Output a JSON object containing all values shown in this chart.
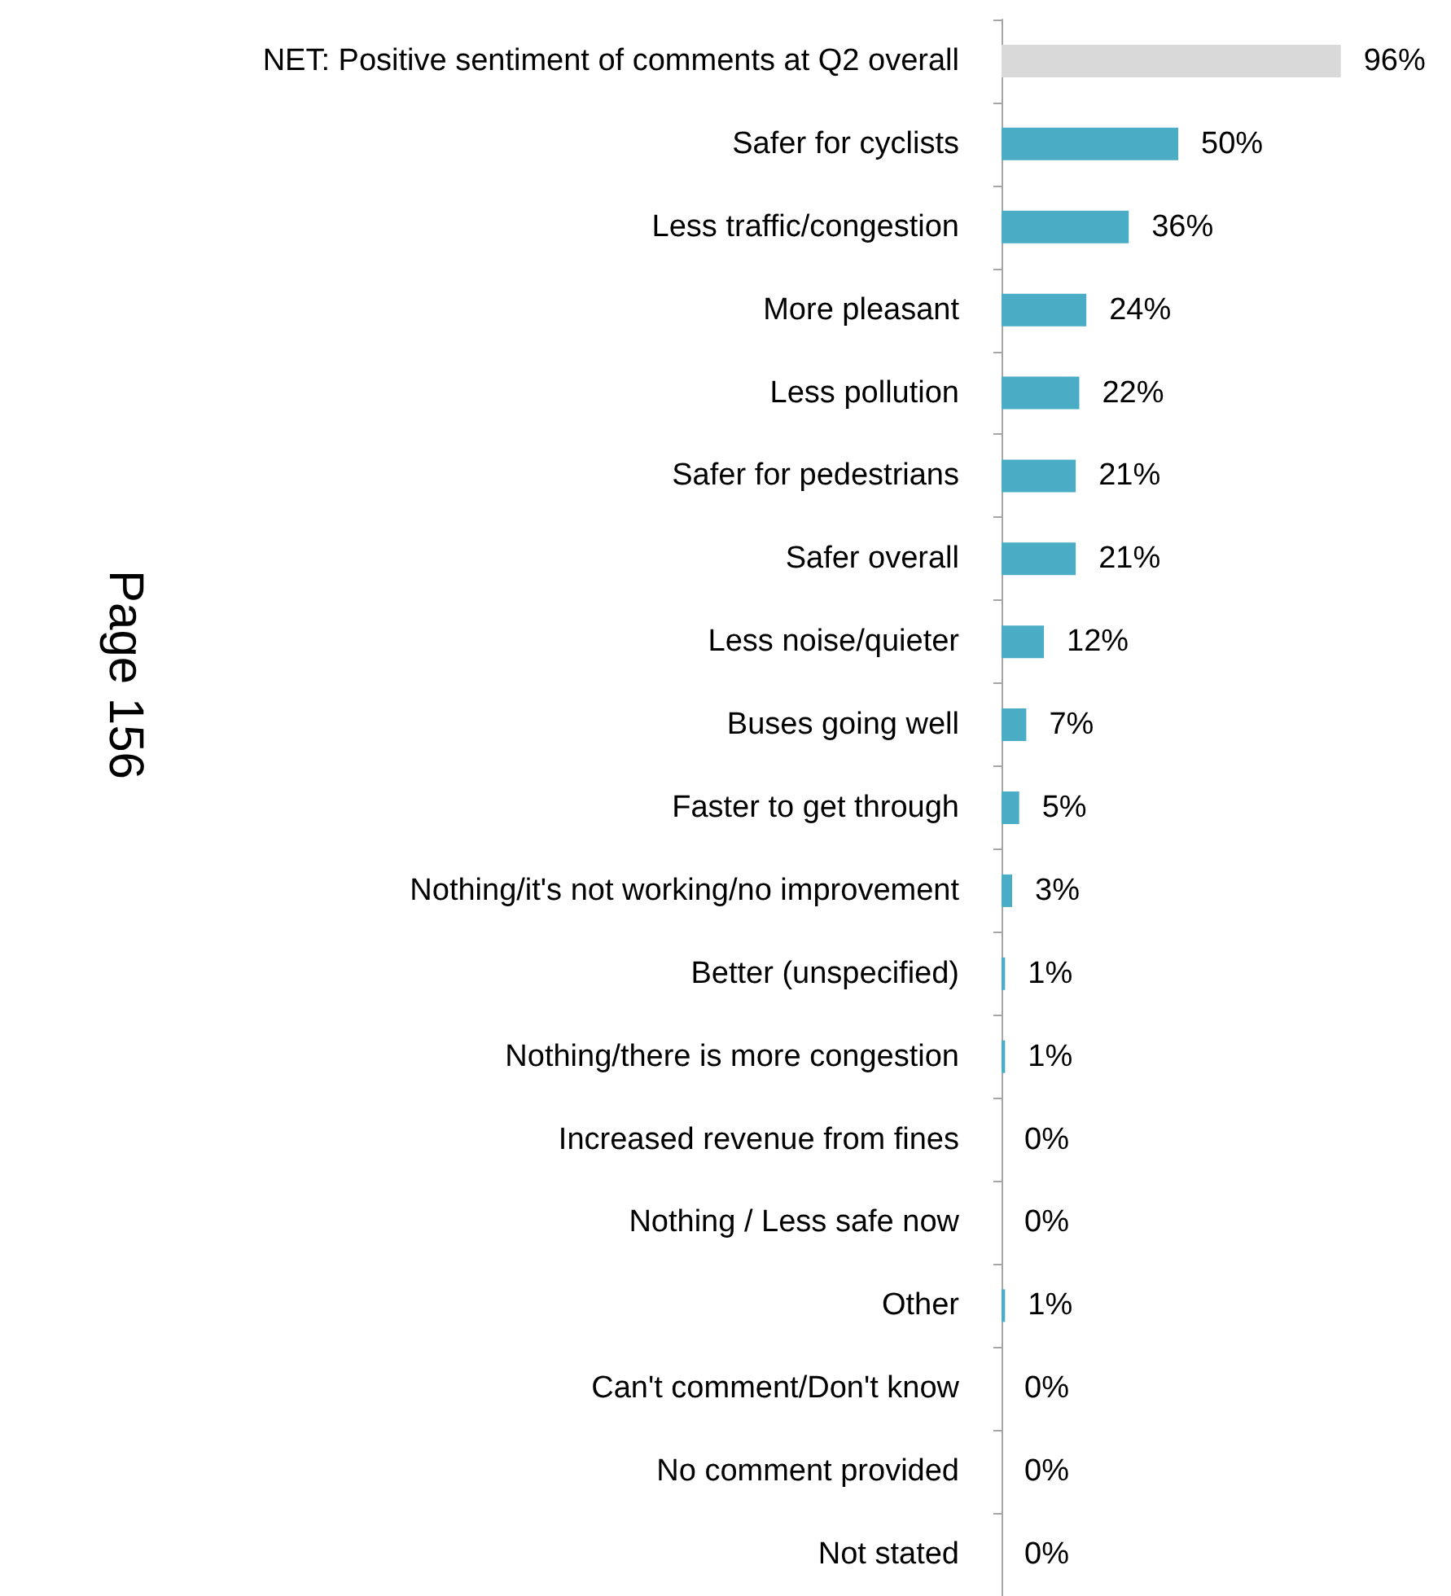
{
  "chart_data": {
    "type": "bar",
    "orientation": "horizontal",
    "categories": [
      "NET: Positive sentiment of comments at Q2 overall",
      "Safer for cyclists",
      "Less traffic/congestion",
      "More pleasant",
      "Less pollution",
      "Safer for pedestrians",
      "Safer overall",
      "Less noise/quieter",
      "Buses going well",
      "Faster to get through",
      "Nothing/it's not working/no improvement",
      "Better (unspecified)",
      "Nothing/there is more congestion",
      "Increased revenue from fines",
      "Nothing / Less safe now",
      "Other",
      "Can't comment/Don't know",
      "No comment provided",
      "Not stated"
    ],
    "values": [
      96,
      50,
      36,
      24,
      22,
      21,
      21,
      12,
      7,
      5,
      3,
      1,
      1,
      0,
      0,
      1,
      0,
      0,
      0
    ],
    "colors": [
      "#d9d9d9",
      "#4bacc6",
      "#4bacc6",
      "#4bacc6",
      "#4bacc6",
      "#4bacc6",
      "#4bacc6",
      "#4bacc6",
      "#4bacc6",
      "#4bacc6",
      "#4bacc6",
      "#4bacc6",
      "#4bacc6",
      "#4bacc6",
      "#4bacc6",
      "#4bacc6",
      "#4bacc6",
      "#4bacc6",
      "#4bacc6"
    ],
    "value_labels": [
      "96%",
      "50%",
      "36%",
      "24%",
      "22%",
      "21%",
      "21%",
      "12%",
      "7%",
      "5%",
      "3%",
      "1%",
      "1%",
      "0%",
      "0%",
      "1%",
      "0%",
      "0%",
      "0%"
    ],
    "annotations": [
      "Page 156"
    ]
  }
}
